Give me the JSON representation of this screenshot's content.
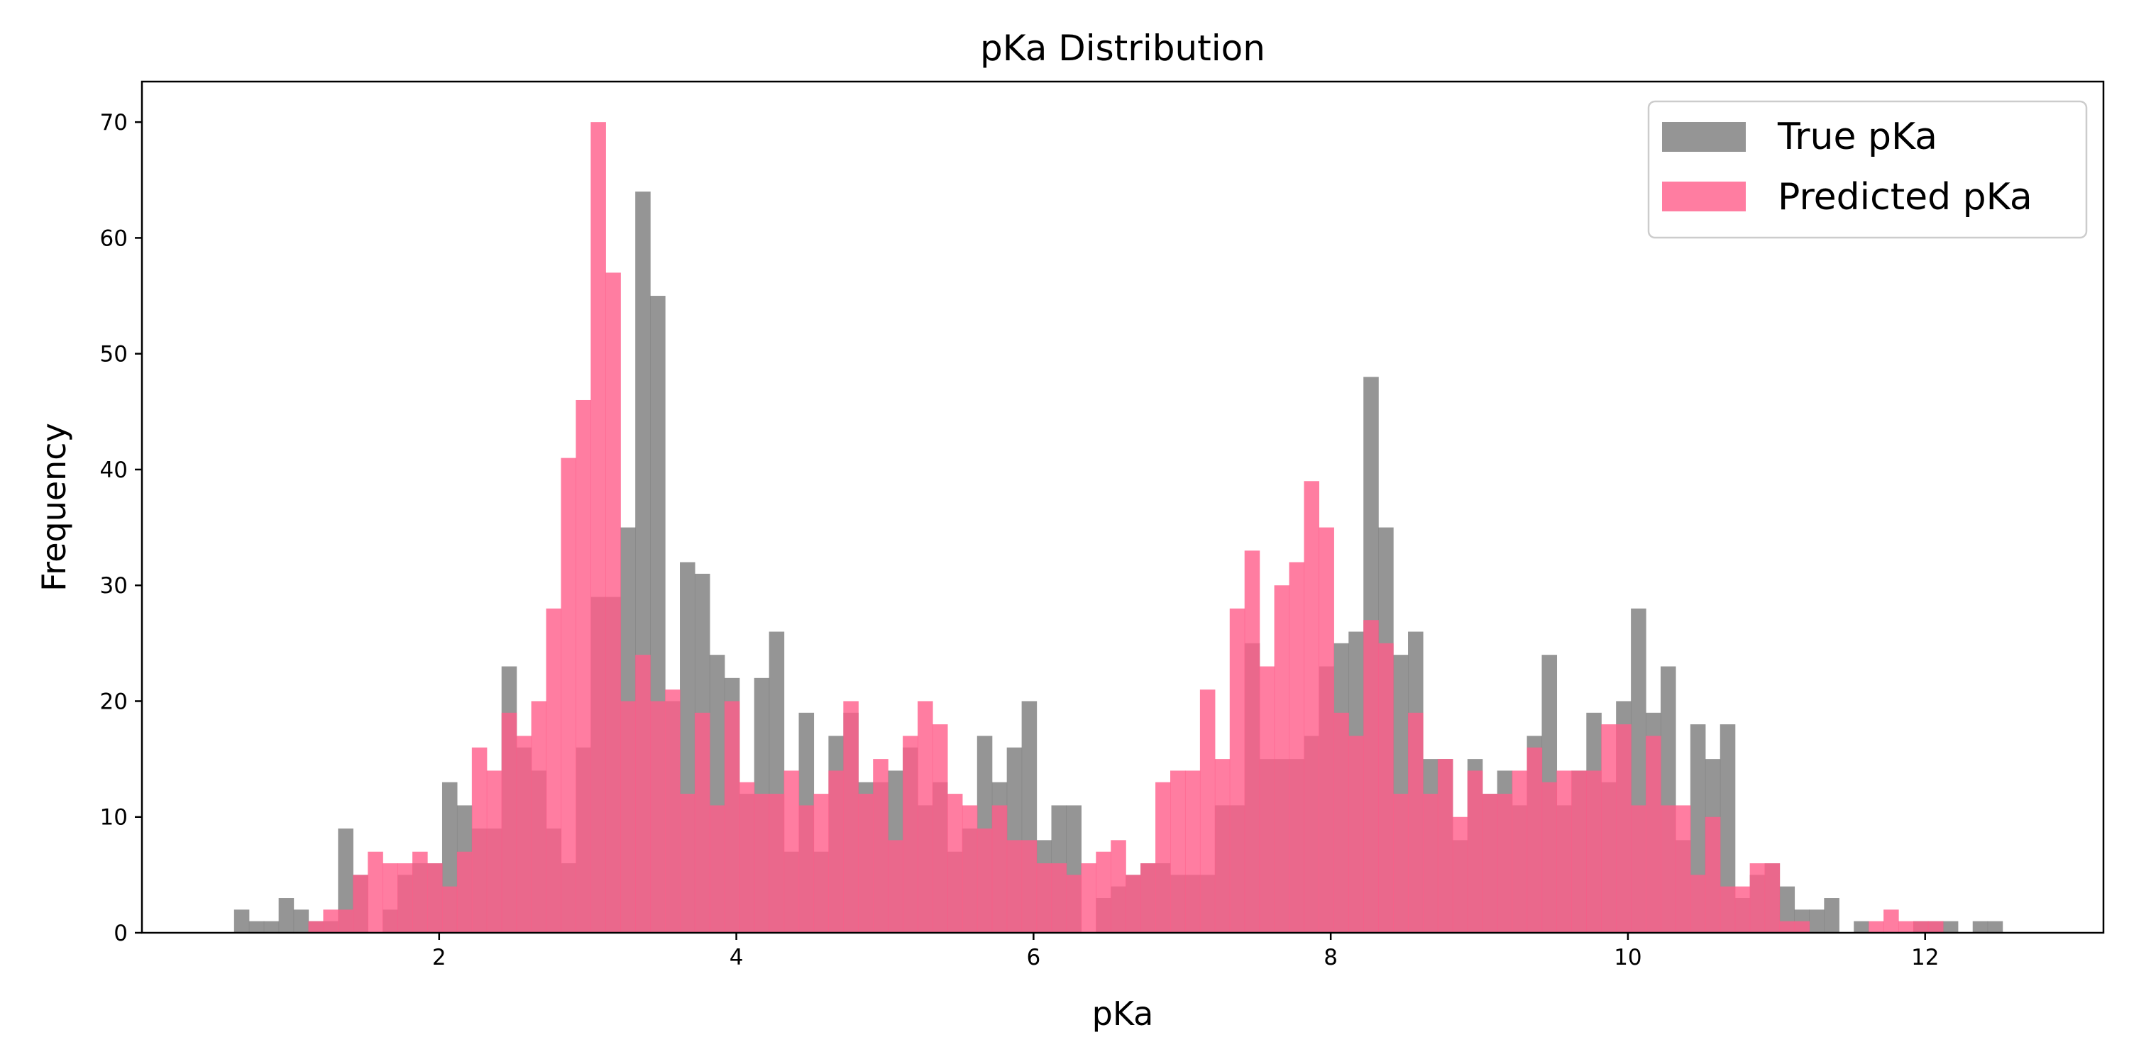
{
  "chart_data": {
    "type": "bar",
    "title": "pKa Distribution",
    "xlabel": "pKa",
    "ylabel": "Frequency",
    "xlim": [
      0.0,
      13.2
    ],
    "ylim": [
      0,
      73.5
    ],
    "xticks": [
      2,
      4,
      6,
      8,
      10,
      12
    ],
    "yticks": [
      0,
      10,
      20,
      30,
      40,
      50,
      60,
      70
    ],
    "grid": false,
    "legend_position": "top-right",
    "bin_start": 0.62,
    "bin_width": 0.1,
    "series": [
      {
        "name": "True pKa",
        "color": "#808080",
        "opacity": 0.83,
        "values": [
          2,
          1,
          1,
          3,
          2,
          1,
          1,
          9,
          5,
          0,
          2,
          5,
          6,
          6,
          13,
          11,
          9,
          9,
          23,
          16,
          14,
          9,
          6,
          16,
          29,
          29,
          35,
          64,
          55,
          20,
          32,
          31,
          24,
          22,
          12,
          22,
          26,
          7,
          19,
          7,
          17,
          19,
          13,
          13,
          14,
          16,
          11,
          13,
          7,
          9,
          17,
          13,
          16,
          20,
          8,
          11,
          11,
          0,
          3,
          4,
          5,
          6,
          6,
          5,
          5,
          5,
          11,
          11,
          25,
          15,
          15,
          15,
          17,
          23,
          25,
          26,
          48,
          35,
          24,
          26,
          15,
          15,
          8,
          15,
          12,
          14,
          11,
          17,
          24,
          11,
          14,
          19,
          13,
          20,
          28,
          19,
          23,
          8,
          18,
          15,
          18,
          3,
          5,
          6,
          4,
          2,
          2,
          3,
          0,
          1,
          0,
          0,
          0,
          1,
          1,
          1,
          0,
          1,
          1
        ]
      },
      {
        "name": "Predicted pKa",
        "color": "#FF5C8A",
        "opacity": 0.8,
        "values": [
          0,
          0,
          0,
          0,
          0,
          1,
          2,
          2,
          5,
          7,
          6,
          6,
          7,
          6,
          4,
          7,
          16,
          14,
          19,
          17,
          20,
          28,
          41,
          46,
          70,
          57,
          20,
          24,
          20,
          21,
          12,
          19,
          11,
          20,
          13,
          12,
          12,
          14,
          11,
          12,
          14,
          20,
          12,
          15,
          8,
          17,
          20,
          18,
          12,
          11,
          9,
          11,
          8,
          8,
          6,
          6,
          5,
          6,
          7,
          8,
          5,
          6,
          13,
          14,
          14,
          21,
          15,
          28,
          33,
          23,
          30,
          32,
          39,
          35,
          19,
          17,
          27,
          25,
          12,
          19,
          12,
          15,
          10,
          14,
          12,
          12,
          14,
          16,
          13,
          14,
          14,
          14,
          18,
          18,
          11,
          17,
          11,
          11,
          5,
          10,
          4,
          4,
          6,
          6,
          1,
          1,
          0,
          0,
          0,
          0,
          1,
          2,
          1,
          1,
          1,
          0
        ]
      }
    ]
  }
}
